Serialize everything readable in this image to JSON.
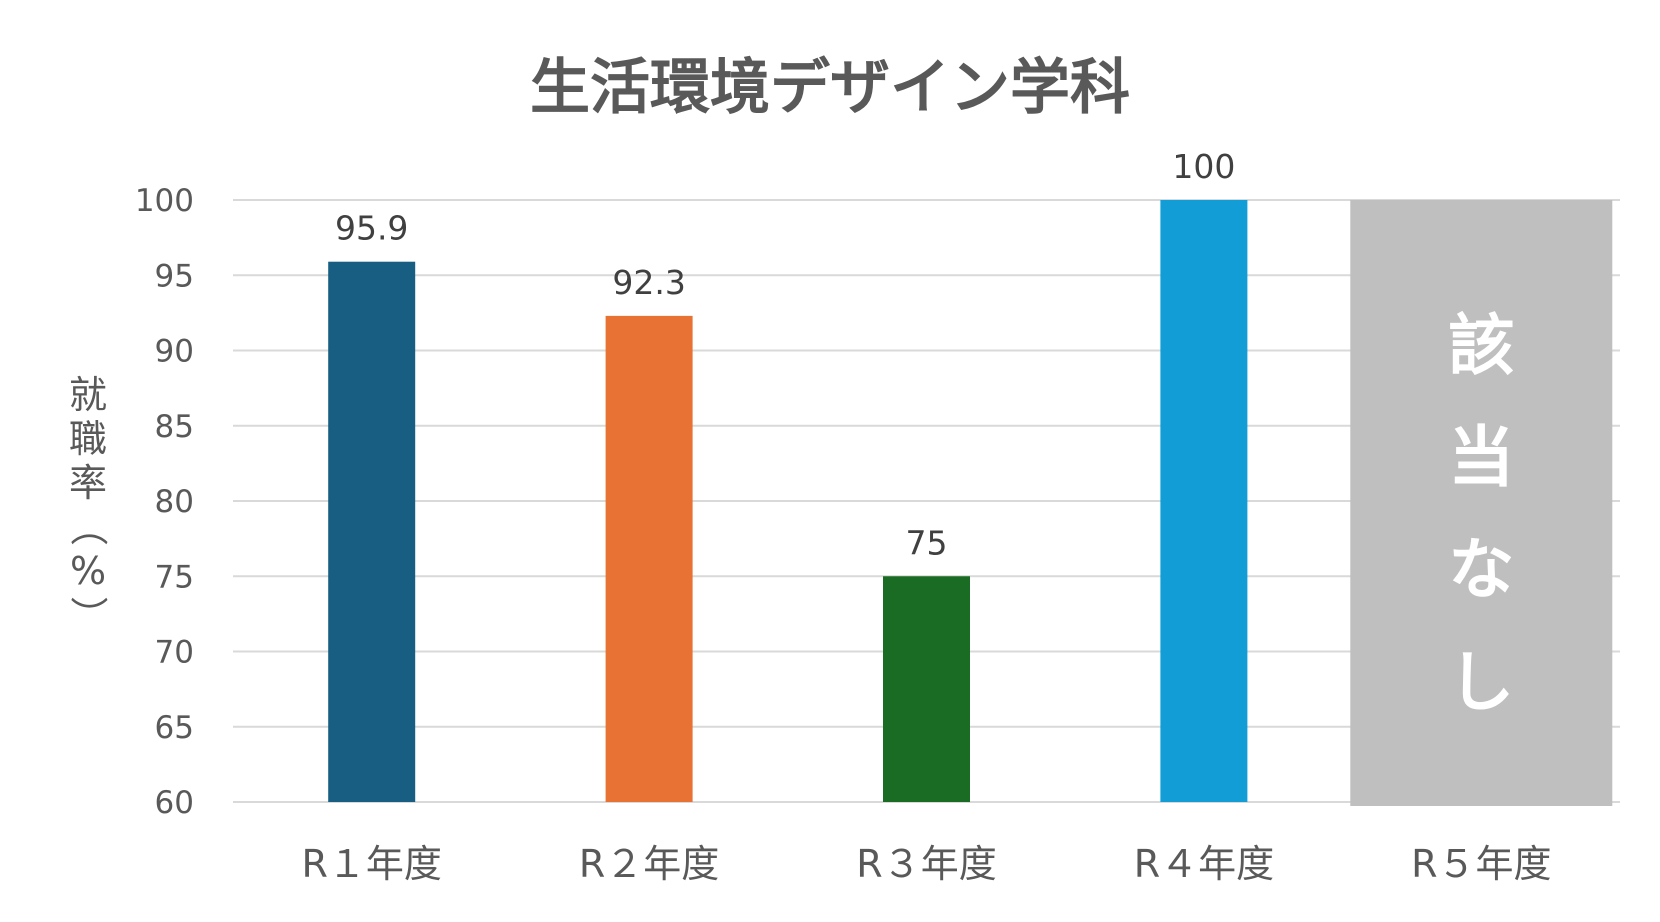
{
  "chart_data": {
    "type": "bar",
    "title": "生活環境デザイン学科",
    "ylabel": "就職率（%）",
    "xlabel": "",
    "categories": [
      "R１年度",
      "R２年度",
      "R３年度",
      "R４年度",
      "R５年度"
    ],
    "values": [
      95.9,
      92.3,
      75,
      100,
      null
    ],
    "data_labels": [
      "95.9",
      "92.3",
      "75",
      "100",
      ""
    ],
    "ylim": [
      60,
      100
    ],
    "yticks": [
      60,
      65,
      70,
      75,
      80,
      85,
      90,
      95,
      100
    ],
    "grid": true,
    "legend": "none",
    "bar_colors": [
      "#175e82",
      "#e87233",
      "#1a6b23",
      "#129dd6",
      "#bfbfbf"
    ],
    "not_applicable": {
      "category": "R５年度",
      "text": [
        "該",
        "当",
        "な",
        "し"
      ],
      "color": "#bfbfbf"
    }
  }
}
